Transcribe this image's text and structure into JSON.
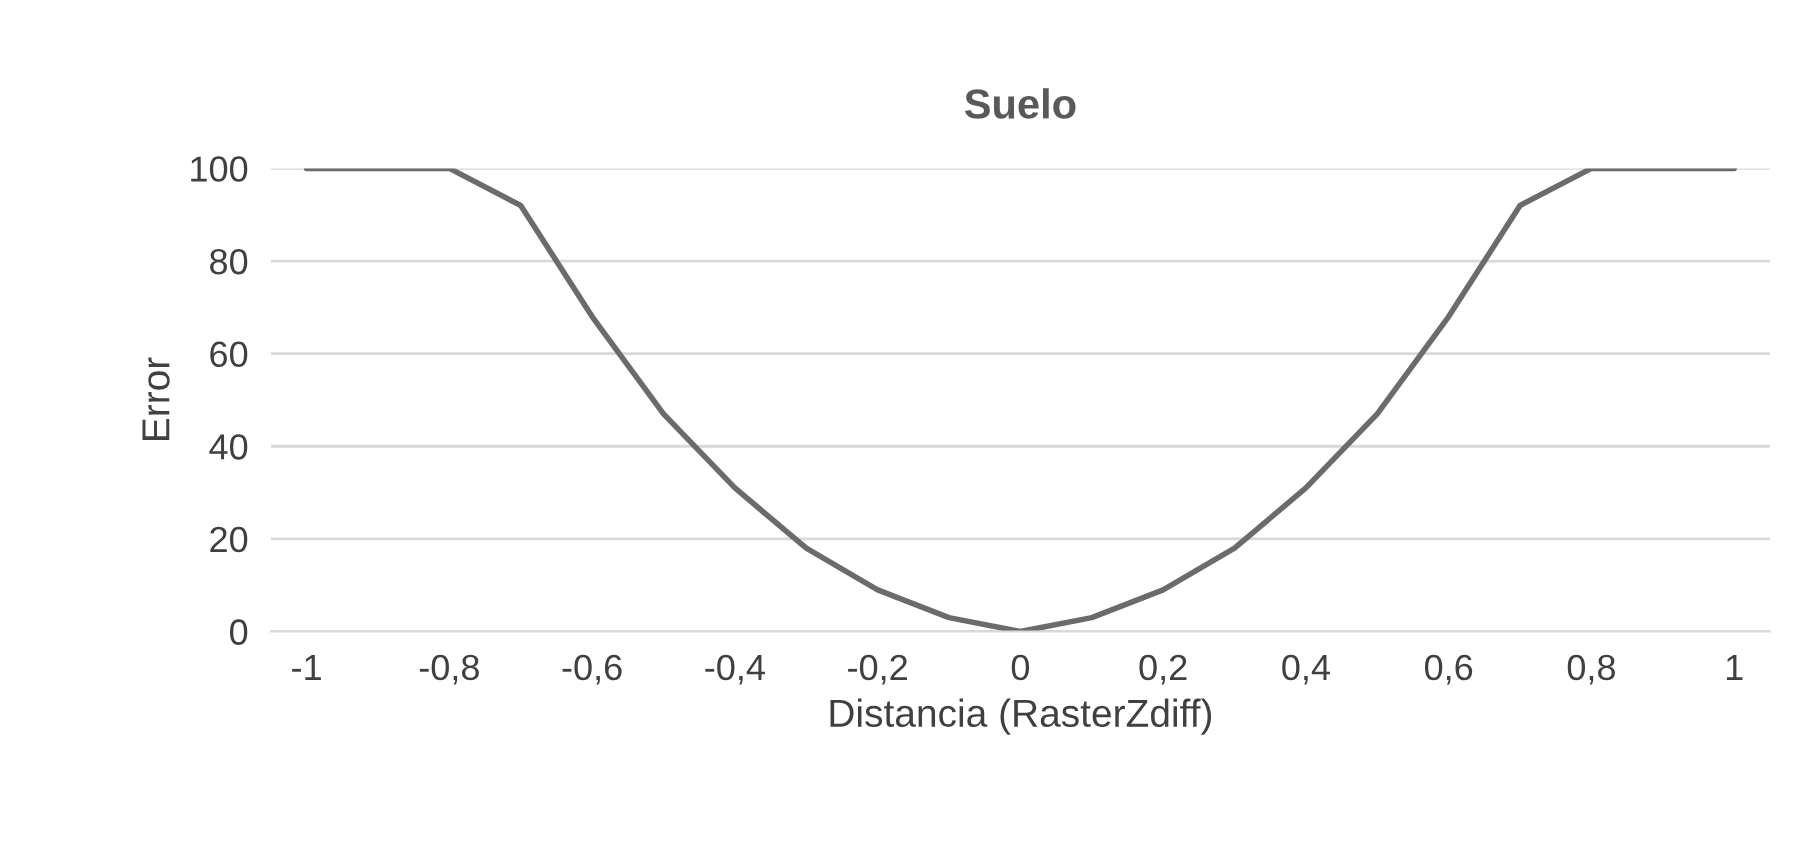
{
  "chart_data": {
    "type": "line",
    "title": "Suelo",
    "xlabel": "Distancia (RasterZdiff)",
    "ylabel": "Error",
    "x": [
      -1,
      -0.9,
      -0.8,
      -0.7,
      -0.6,
      -0.5,
      -0.4,
      -0.3,
      -0.2,
      -0.1,
      0,
      0.1,
      0.2,
      0.3,
      0.4,
      0.5,
      0.6,
      0.7,
      0.8,
      0.9,
      1
    ],
    "series": [
      {
        "color": "#6b6b6b",
        "values": [
          100,
          100,
          100,
          92,
          68,
          47,
          31,
          18,
          9,
          3,
          0,
          3,
          9,
          18,
          31,
          47,
          68,
          92,
          100,
          100,
          100
        ]
      }
    ],
    "xlim": [
      -1.05,
      1.05
    ],
    "xticks": [
      -1,
      {
        "value": -0.8,
        "label": "-0,8"
      },
      {
        "value": -0.6,
        "label": "-0,6"
      },
      {
        "value": -0.4,
        "label": "-0,4"
      },
      {
        "value": -0.2,
        "label": "-0,2"
      },
      0,
      {
        "value": 0.2,
        "label": "0,2"
      },
      {
        "value": 0.4,
        "label": "0,4"
      },
      {
        "value": 0.6,
        "label": "0,6"
      },
      {
        "value": 0.8,
        "label": "0,8"
      },
      1
    ],
    "ylim": [
      0,
      100
    ],
    "yticks": [
      0,
      20,
      40,
      60,
      80,
      100
    ],
    "grid": "y",
    "line_style": "solid",
    "marker": "none"
  }
}
